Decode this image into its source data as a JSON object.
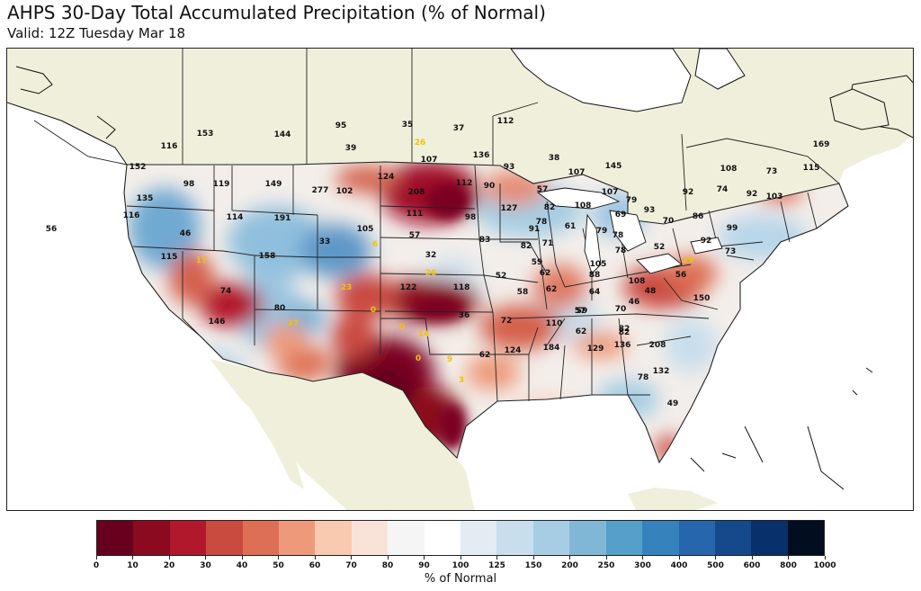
{
  "title": "AHPS 30-Day Total Accumulated Precipitation (% of Normal)",
  "subtitle": "Valid: 12Z Tuesday Mar 18",
  "colorbar": {
    "label": "% of Normal",
    "ticks": [
      "0",
      "10",
      "20",
      "30",
      "40",
      "50",
      "60",
      "70",
      "80",
      "90",
      "100",
      "125",
      "150",
      "200",
      "250",
      "300",
      "400",
      "500",
      "600",
      "800",
      "1000"
    ],
    "colors": [
      "#67001f",
      "#8b0a1f",
      "#b2182b",
      "#c94a3f",
      "#dd6f55",
      "#ee9a7a",
      "#f9c9b0",
      "#f9e3d8",
      "#f5f5f5",
      "#ffffff",
      "#e3ebf3",
      "#c9deec",
      "#a6cde3",
      "#80b7d7",
      "#559fcb",
      "#3582bd",
      "#2566ac",
      "#144a8c",
      "#08306b",
      "#020d1f"
    ]
  },
  "map": {
    "land_color": "#efefdb",
    "water_color": "#ffffff",
    "labels_dark": [
      {
        "text": "95"
      },
      {
        "text": "112"
      },
      {
        "text": "153"
      },
      {
        "text": "144"
      },
      {
        "text": "116"
      },
      {
        "text": "39"
      },
      {
        "text": "35"
      },
      {
        "text": "37"
      },
      {
        "text": "136"
      },
      {
        "text": "107"
      },
      {
        "text": "38"
      },
      {
        "text": "93"
      },
      {
        "text": "107"
      },
      {
        "text": "145"
      },
      {
        "text": "169"
      },
      {
        "text": "152"
      },
      {
        "text": "124"
      },
      {
        "text": "112"
      },
      {
        "text": "90"
      },
      {
        "text": "108"
      },
      {
        "text": "73"
      },
      {
        "text": "115"
      },
      {
        "text": "98"
      },
      {
        "text": "119"
      },
      {
        "text": "149"
      },
      {
        "text": "277"
      },
      {
        "text": "102"
      },
      {
        "text": "208"
      },
      {
        "text": "57"
      },
      {
        "text": "107"
      },
      {
        "text": "92"
      },
      {
        "text": "74"
      },
      {
        "text": "92"
      },
      {
        "text": "103"
      },
      {
        "text": "135"
      },
      {
        "text": "79"
      },
      {
        "text": "127"
      },
      {
        "text": "108"
      },
      {
        "text": "93"
      },
      {
        "text": "116"
      },
      {
        "text": "114"
      },
      {
        "text": "191"
      },
      {
        "text": "111"
      },
      {
        "text": "98"
      },
      {
        "text": "82"
      },
      {
        "text": "78"
      },
      {
        "text": "69"
      },
      {
        "text": "70"
      },
      {
        "text": "86"
      },
      {
        "text": "56"
      },
      {
        "text": "46"
      },
      {
        "text": "105"
      },
      {
        "text": "57"
      },
      {
        "text": "83"
      },
      {
        "text": "91"
      },
      {
        "text": "61"
      },
      {
        "text": "79"
      },
      {
        "text": "99"
      },
      {
        "text": "33"
      },
      {
        "text": "78"
      },
      {
        "text": "52"
      },
      {
        "text": "92"
      },
      {
        "text": "115"
      },
      {
        "text": "158"
      },
      {
        "text": "32"
      },
      {
        "text": "82"
      },
      {
        "text": "71"
      },
      {
        "text": "78"
      },
      {
        "text": "73"
      },
      {
        "text": "59"
      },
      {
        "text": "105"
      },
      {
        "text": "52"
      },
      {
        "text": "88"
      },
      {
        "text": "108"
      },
      {
        "text": "74"
      },
      {
        "text": "122"
      },
      {
        "text": "118"
      },
      {
        "text": "58"
      },
      {
        "text": "62"
      },
      {
        "text": "62"
      },
      {
        "text": "56"
      },
      {
        "text": "64"
      },
      {
        "text": "48"
      },
      {
        "text": "57"
      },
      {
        "text": "46"
      },
      {
        "text": "150"
      },
      {
        "text": "80"
      },
      {
        "text": "59"
      },
      {
        "text": "70"
      },
      {
        "text": "146"
      },
      {
        "text": "72"
      },
      {
        "text": "110"
      },
      {
        "text": "82"
      },
      {
        "text": "36"
      },
      {
        "text": "62"
      },
      {
        "text": "82"
      },
      {
        "text": "124"
      },
      {
        "text": "184"
      },
      {
        "text": "129"
      },
      {
        "text": "136"
      },
      {
        "text": "208"
      },
      {
        "text": "62"
      },
      {
        "text": "78"
      },
      {
        "text": "132"
      },
      {
        "text": "49"
      }
    ],
    "labels_yellow": [
      {
        "text": "26"
      },
      {
        "text": "17"
      },
      {
        "text": "6"
      },
      {
        "text": "29"
      },
      {
        "text": "26"
      },
      {
        "text": "23"
      },
      {
        "text": "0"
      },
      {
        "text": "0"
      },
      {
        "text": "27"
      },
      {
        "text": "14"
      },
      {
        "text": "0"
      },
      {
        "text": "9"
      },
      {
        "text": "3"
      }
    ]
  }
}
